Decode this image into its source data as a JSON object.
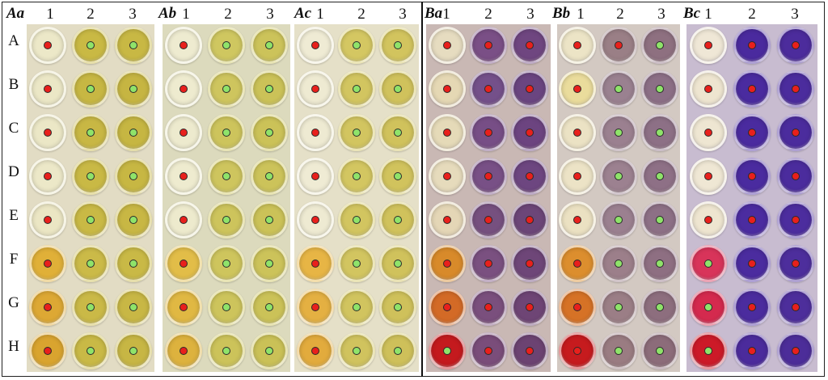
{
  "row_labels": [
    "A",
    "B",
    "C",
    "D",
    "E",
    "F",
    "G",
    "H"
  ],
  "column_labels": [
    "1",
    "2",
    "3"
  ],
  "marker_colors": {
    "red": "#e8201c",
    "green": "#8fe36a"
  },
  "panels": [
    {
      "title": "Aa",
      "bg": "#e2dcc4",
      "wells": [
        [
          "#ece8c8",
          "#c9b944",
          "#c8b844"
        ],
        [
          "#ebe7c6",
          "#c7b743",
          "#c6b542"
        ],
        [
          "#ebe7c6",
          "#c8b744",
          "#c6b642"
        ],
        [
          "#ece8c8",
          "#c9b945",
          "#c7b743"
        ],
        [
          "#ebe6c4",
          "#c9b945",
          "#c8b744"
        ],
        [
          "#e0b038",
          "#cbba48",
          "#c9b946"
        ],
        [
          "#dda834",
          "#cab947",
          "#c8b745"
        ],
        [
          "#d9a42f",
          "#c9b946",
          "#c7b644"
        ]
      ],
      "markers": [
        [
          "red",
          "green",
          "green"
        ],
        [
          "red",
          "green",
          "green"
        ],
        [
          "red",
          "green",
          "green"
        ],
        [
          "red",
          "green",
          "green"
        ],
        [
          "red",
          "green",
          "green"
        ],
        [
          "red",
          "green",
          "green"
        ],
        [
          "red",
          "green",
          "green"
        ],
        [
          "red",
          "green",
          "green"
        ]
      ]
    },
    {
      "title": "Ab",
      "bg": "#dcdabd",
      "wells": [
        [
          "#eeebd0",
          "#cfc760",
          "#ccc35a"
        ],
        [
          "#eeebcf",
          "#cec55e",
          "#cbc258"
        ],
        [
          "#edeace",
          "#cdc45c",
          "#cbc258"
        ],
        [
          "#eeebcf",
          "#cec55e",
          "#ccc35a"
        ],
        [
          "#edeacd",
          "#cdc45c",
          "#cbc258"
        ],
        [
          "#e2bd48",
          "#cec55d",
          "#ccc35a"
        ],
        [
          "#e0b843",
          "#cdc45c",
          "#cbc258"
        ],
        [
          "#ddb23e",
          "#ccc35a",
          "#cac157"
        ]
      ],
      "markers": [
        [
          "red",
          "green",
          "green"
        ],
        [
          "red",
          "green",
          "green"
        ],
        [
          "red",
          "green",
          "green"
        ],
        [
          "red",
          "green",
          "green"
        ],
        [
          "red",
          "green",
          "green"
        ],
        [
          "red",
          "green",
          "green"
        ],
        [
          "red",
          "green",
          "green"
        ],
        [
          "red",
          "green",
          "green"
        ]
      ]
    },
    {
      "title": "Ac",
      "bg": "#e5e0c8",
      "wells": [
        [
          "#efebd4",
          "#d4c762",
          "#d2c45e"
        ],
        [
          "#eeead2",
          "#d2c560",
          "#d0c25c"
        ],
        [
          "#eeead2",
          "#d2c560",
          "#d0c25c"
        ],
        [
          "#efebd4",
          "#d3c661",
          "#d1c35d"
        ],
        [
          "#eeead2",
          "#d2c560",
          "#d0c25c"
        ],
        [
          "#e7b545",
          "#d2c560",
          "#d0c25c"
        ],
        [
          "#e4b042",
          "#d1c45f",
          "#cfc15b"
        ],
        [
          "#e2ab3d",
          "#d0c35e",
          "#cec05a"
        ]
      ],
      "markers": [
        [
          "red",
          "green",
          "green"
        ],
        [
          "red",
          "green",
          "green"
        ],
        [
          "red",
          "green",
          "green"
        ],
        [
          "red",
          "green",
          "green"
        ],
        [
          "red",
          "green",
          "green"
        ],
        [
          "red",
          "green",
          "green"
        ],
        [
          "red",
          "green",
          "green"
        ],
        [
          "red",
          "green",
          "green"
        ]
      ]
    },
    {
      "title": "Ba",
      "bg": "#c9b8b4",
      "wells": [
        [
          "#e6dcc0",
          "#7a4f86",
          "#6f4680"
        ],
        [
          "#e5d8b4",
          "#74508a",
          "#6a4580"
        ],
        [
          "#e5dab8",
          "#774e86",
          "#6c4480"
        ],
        [
          "#e6dbbc",
          "#785086",
          "#6d4680"
        ],
        [
          "#e4d6b6",
          "#76507f",
          "#6c4678"
        ],
        [
          "#d88a2a",
          "#7a5080",
          "#6e4678"
        ],
        [
          "#d36a26",
          "#7a4f7d",
          "#6e4575"
        ],
        [
          "#c41a1e",
          "#7a4d7a",
          "#6c4372"
        ]
      ],
      "markers": [
        [
          "red",
          "red",
          "red"
        ],
        [
          "red",
          "red",
          "red"
        ],
        [
          "red",
          "red",
          "red"
        ],
        [
          "red",
          "red",
          "red"
        ],
        [
          "red",
          "red",
          "red"
        ],
        [
          "red",
          "red",
          "red"
        ],
        [
          "red",
          "red",
          "red"
        ],
        [
          "green",
          "red",
          "red"
        ]
      ]
    },
    {
      "title": "Bb",
      "bg": "#d3c9c2",
      "wells": [
        [
          "#ece4c6",
          "#9a7f86",
          "#8e7080"
        ],
        [
          "#eadc9c",
          "#9a8190",
          "#8c6f86"
        ],
        [
          "#ebe2c4",
          "#9b8090",
          "#8d7086"
        ],
        [
          "#ece3c6",
          "#9c8190",
          "#8e7086"
        ],
        [
          "#ebe1c2",
          "#9b8090",
          "#8d7086"
        ],
        [
          "#dc8e2e",
          "#9c7f8a",
          "#8e6f82"
        ],
        [
          "#d67226",
          "#9b7e86",
          "#8d6e7e"
        ],
        [
          "#c61b1e",
          "#9a7c82",
          "#8c6c7a"
        ]
      ],
      "markers": [
        [
          "red",
          "red",
          "green"
        ],
        [
          "red",
          "green",
          "green"
        ],
        [
          "red",
          "green",
          "green"
        ],
        [
          "red",
          "green",
          "green"
        ],
        [
          "red",
          "green",
          "green"
        ],
        [
          "red",
          "green",
          "green"
        ],
        [
          "red",
          "green",
          "green"
        ],
        [
          "red",
          "green",
          "green"
        ]
      ]
    },
    {
      "title": "Bc",
      "bg": "#c8bcd0",
      "wells": [
        [
          "#efe7d6",
          "#4a2a9e",
          "#4c2c9c"
        ],
        [
          "#eee5d0",
          "#4a2b9f",
          "#4b2c9d"
        ],
        [
          "#eee6d2",
          "#4a2b9f",
          "#4b2c9d"
        ],
        [
          "#efe7d4",
          "#4a2b9f",
          "#4b2c9d"
        ],
        [
          "#eee5d0",
          "#4b2ca0",
          "#4c2d9e"
        ],
        [
          "#d8345a",
          "#4b2c9f",
          "#4d2e9c"
        ],
        [
          "#d42a4e",
          "#4b2c9e",
          "#4d2e9b"
        ],
        [
          "#cc1a28",
          "#4b2b9c",
          "#4c2d99"
        ]
      ],
      "markers": [
        [
          "red",
          "red",
          "red"
        ],
        [
          "red",
          "red",
          "red"
        ],
        [
          "red",
          "red",
          "red"
        ],
        [
          "red",
          "red",
          "red"
        ],
        [
          "red",
          "red",
          "red"
        ],
        [
          "green",
          "red",
          "red"
        ],
        [
          "green",
          "red",
          "red"
        ],
        [
          "green",
          "red",
          "red"
        ]
      ]
    }
  ]
}
